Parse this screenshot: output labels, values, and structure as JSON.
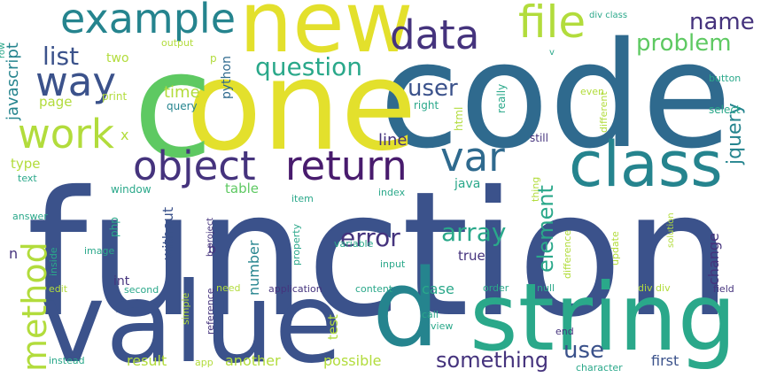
{
  "palette": {
    "yellow": "#e3e02c",
    "lime": "#b2dc3c",
    "green": "#5ec962",
    "teal": "#2aa88a",
    "cyan": "#25848e",
    "blue": "#2f6a8e",
    "indigo": "#3b528b",
    "violet": "#45337d",
    "purple": "#481b6d",
    "dark": "#440154"
  },
  "words": [
    {
      "id": "function",
      "text": "function",
      "color": "indigo"
    },
    {
      "id": "code",
      "text": "code",
      "color": "blue"
    },
    {
      "id": "one",
      "text": "one",
      "color": "yellow"
    },
    {
      "id": "c",
      "text": "c",
      "color": "green"
    },
    {
      "id": "new",
      "text": "new",
      "color": "yellow"
    },
    {
      "id": "value",
      "text": "value",
      "color": "indigo"
    },
    {
      "id": "string",
      "text": "string",
      "color": "teal"
    },
    {
      "id": "d",
      "text": "d",
      "color": "cyan"
    },
    {
      "id": "class",
      "text": "class",
      "color": "cyan"
    },
    {
      "id": "example",
      "text": "example",
      "color": "cyan"
    },
    {
      "id": "data",
      "text": "data",
      "color": "violet"
    },
    {
      "id": "file",
      "text": "file",
      "color": "lime"
    },
    {
      "id": "way",
      "text": "way",
      "color": "indigo"
    },
    {
      "id": "work",
      "text": "work",
      "color": "lime"
    },
    {
      "id": "object",
      "text": "object",
      "color": "violet"
    },
    {
      "id": "return",
      "text": "return",
      "color": "purple"
    },
    {
      "id": "var",
      "text": "var",
      "color": "blue"
    },
    {
      "id": "method",
      "text": "method",
      "color": "lime"
    },
    {
      "id": "list",
      "text": "list",
      "color": "indigo"
    },
    {
      "id": "question",
      "text": "question",
      "color": "teal"
    },
    {
      "id": "name",
      "text": "name",
      "color": "violet"
    },
    {
      "id": "problem",
      "text": "problem",
      "color": "green"
    },
    {
      "id": "user",
      "text": "user",
      "color": "indigo"
    },
    {
      "id": "something",
      "text": "something",
      "color": "violet"
    },
    {
      "id": "error",
      "text": "error",
      "color": "violet"
    },
    {
      "id": "array",
      "text": "array",
      "color": "teal"
    },
    {
      "id": "element",
      "text": "element",
      "color": "teal"
    },
    {
      "id": "use",
      "text": "use",
      "color": "indigo"
    },
    {
      "id": "jquery",
      "text": "jquery",
      "color": "cyan"
    },
    {
      "id": "javascript",
      "text": "javascript",
      "color": "cyan"
    },
    {
      "id": "python",
      "text": "python",
      "color": "blue"
    },
    {
      "id": "time",
      "text": "time",
      "color": "lime"
    },
    {
      "id": "page",
      "text": "page",
      "color": "lime"
    },
    {
      "id": "two",
      "text": "two",
      "color": "lime"
    },
    {
      "id": "print",
      "text": "print",
      "color": "lime"
    },
    {
      "id": "query",
      "text": "query",
      "color": "cyan"
    },
    {
      "id": "output",
      "text": "output",
      "color": "lime"
    },
    {
      "id": "p",
      "text": "p",
      "color": "lime"
    },
    {
      "id": "div-class",
      "text": "div class",
      "color": "teal"
    },
    {
      "id": "button",
      "text": "button",
      "color": "teal"
    },
    {
      "id": "v",
      "text": "v",
      "color": "teal"
    },
    {
      "id": "x",
      "text": "x",
      "color": "lime"
    },
    {
      "id": "line",
      "text": "line",
      "color": "violet"
    },
    {
      "id": "right",
      "text": "right",
      "color": "teal"
    },
    {
      "id": "html",
      "text": "html",
      "color": "lime"
    },
    {
      "id": "really",
      "text": "really",
      "color": "teal"
    },
    {
      "id": "even",
      "text": "even",
      "color": "lime"
    },
    {
      "id": "different",
      "text": "different",
      "color": "lime"
    },
    {
      "id": "select",
      "text": "select",
      "color": "teal"
    },
    {
      "id": "still",
      "text": "still",
      "color": "violet"
    },
    {
      "id": "type",
      "text": "type",
      "color": "lime"
    },
    {
      "id": "text",
      "text": "text",
      "color": "teal"
    },
    {
      "id": "window",
      "text": "window",
      "color": "teal"
    },
    {
      "id": "table",
      "text": "table",
      "color": "green"
    },
    {
      "id": "item",
      "text": "item",
      "color": "teal"
    },
    {
      "id": "java",
      "text": "java",
      "color": "teal"
    },
    {
      "id": "index",
      "text": "index",
      "color": "teal"
    },
    {
      "id": "thing",
      "text": "thing",
      "color": "lime"
    },
    {
      "id": "answer",
      "text": "answer",
      "color": "teal"
    },
    {
      "id": "without",
      "text": "without",
      "color": "indigo"
    },
    {
      "id": "b-project",
      "text": "b project",
      "color": "violet"
    },
    {
      "id": "solution",
      "text": "solution",
      "color": "lime"
    },
    {
      "id": "n",
      "text": "n",
      "color": "violet"
    },
    {
      "id": "inside",
      "text": "inside",
      "color": "teal"
    },
    {
      "id": "php",
      "text": "php",
      "color": "teal"
    },
    {
      "id": "image",
      "text": "image",
      "color": "teal"
    },
    {
      "id": "b",
      "text": "b",
      "color": "violet"
    },
    {
      "id": "number",
      "text": "number",
      "color": "cyan"
    },
    {
      "id": "property",
      "text": "property",
      "color": "teal"
    },
    {
      "id": "variable",
      "text": "variable",
      "color": "teal"
    },
    {
      "id": "input",
      "text": "input",
      "color": "teal"
    },
    {
      "id": "true",
      "text": "true",
      "color": "violet"
    },
    {
      "id": "change",
      "text": "change",
      "color": "violet"
    },
    {
      "id": "update",
      "text": "update",
      "color": "lime"
    },
    {
      "id": "difference",
      "text": "difference",
      "color": "lime"
    },
    {
      "id": "int",
      "text": "int",
      "color": "violet"
    },
    {
      "id": "edit",
      "text": "edit",
      "color": "lime"
    },
    {
      "id": "second",
      "text": "second",
      "color": "teal"
    },
    {
      "id": "need",
      "text": "need",
      "color": "lime"
    },
    {
      "id": "application",
      "text": "application",
      "color": "violet"
    },
    {
      "id": "content",
      "text": "content",
      "color": "teal"
    },
    {
      "id": "order",
      "text": "order",
      "color": "teal"
    },
    {
      "id": "null",
      "text": "null",
      "color": "teal"
    },
    {
      "id": "div-div",
      "text": "div div",
      "color": "lime"
    },
    {
      "id": "field",
      "text": "field",
      "color": "violet"
    },
    {
      "id": "case",
      "text": "case",
      "color": "teal"
    },
    {
      "id": "reference",
      "text": "reference",
      "color": "violet"
    },
    {
      "id": "simple",
      "text": "simple",
      "color": "lime"
    },
    {
      "id": "test",
      "text": "test",
      "color": "lime"
    },
    {
      "id": "call",
      "text": "call",
      "color": "teal"
    },
    {
      "id": "view",
      "text": "view",
      "color": "teal"
    },
    {
      "id": "end",
      "text": "end",
      "color": "violet"
    },
    {
      "id": "instead",
      "text": "instead",
      "color": "teal"
    },
    {
      "id": "result",
      "text": "result",
      "color": "lime"
    },
    {
      "id": "app",
      "text": "app",
      "color": "lime"
    },
    {
      "id": "another",
      "text": "another",
      "color": "lime"
    },
    {
      "id": "possible",
      "text": "possible",
      "color": "lime"
    },
    {
      "id": "character",
      "text": "character",
      "color": "teal"
    },
    {
      "id": "first",
      "text": "first",
      "color": "indigo"
    },
    {
      "id": "row",
      "text": "row",
      "color": "teal"
    }
  ]
}
